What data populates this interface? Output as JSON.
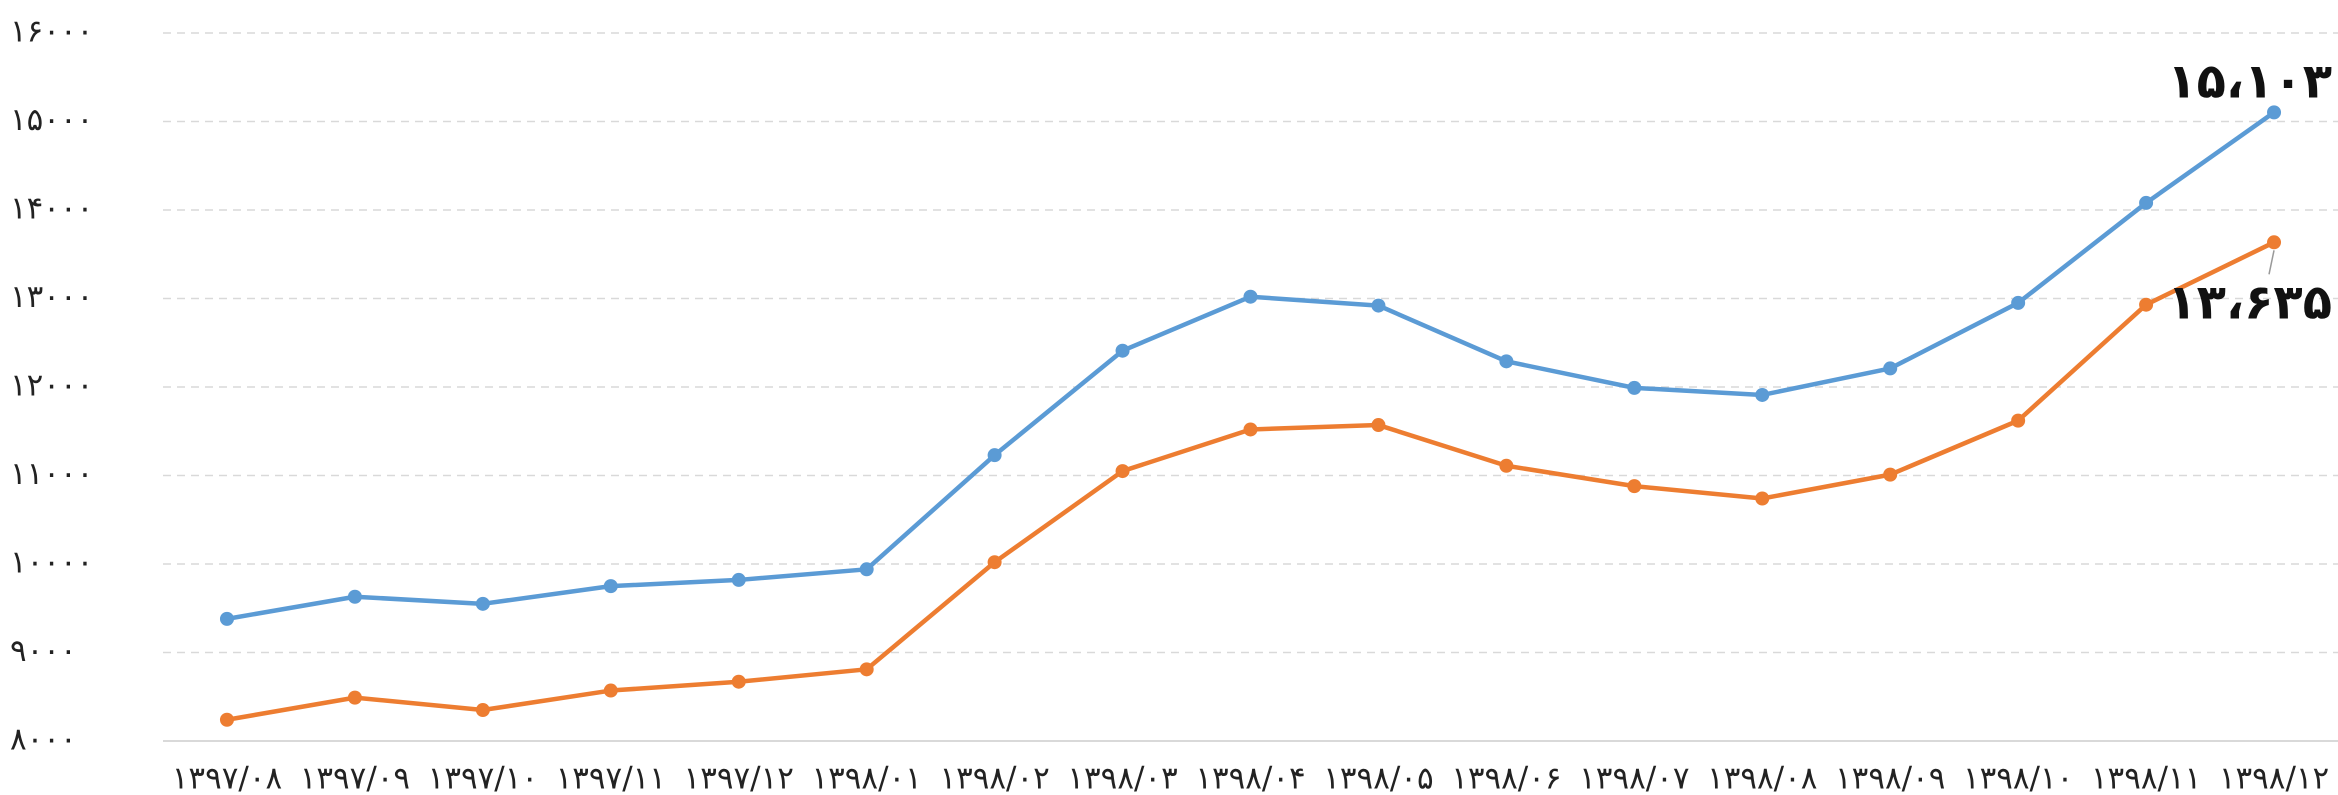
{
  "chart_data": {
    "type": "line",
    "categories": [
      "۱۳۹۷/۰۸",
      "۱۳۹۷/۰۹",
      "۱۳۹۷/۱۰",
      "۱۳۹۷/۱۱",
      "۱۳۹۷/۱۲",
      "۱۳۹۸/۰۱",
      "۱۳۹۸/۰۲",
      "۱۳۹۸/۰۳",
      "۱۳۹۸/۰۴",
      "۱۳۹۸/۰۵",
      "۱۳۹۸/۰۶",
      "۱۳۹۸/۰۷",
      "۱۳۹۸/۰۸",
      "۱۳۹۸/۰۹",
      "۱۳۹۸/۱۰",
      "۱۳۹۸/۱۱",
      "۱۳۹۸/۱۲"
    ],
    "series": [
      {
        "color": "#5b9bd5",
        "values": [
          9380,
          9630,
          9550,
          9750,
          9820,
          9940,
          11230,
          12410,
          13020,
          12920,
          12290,
          11990,
          11910,
          12210,
          12950,
          14080,
          15103
        ],
        "value_labels": [
          null,
          null,
          null,
          null,
          null,
          null,
          null,
          null,
          null,
          null,
          null,
          null,
          null,
          null,
          null,
          null,
          "۱۵،۱۰۳"
        ]
      },
      {
        "color": "#ed7d31",
        "values": [
          8240,
          8490,
          8350,
          8570,
          8670,
          8810,
          10020,
          11050,
          11520,
          11570,
          11110,
          10880,
          10740,
          11010,
          11620,
          12930,
          13635
        ],
        "value_labels": [
          null,
          null,
          null,
          null,
          null,
          null,
          null,
          null,
          null,
          null,
          null,
          null,
          null,
          null,
          null,
          null,
          "۱۳،۶۳۵"
        ]
      }
    ],
    "ylim": [
      8000,
      16000
    ],
    "yticks": [
      {
        "value": 8000,
        "label": "۸۰۰۰"
      },
      {
        "value": 9000,
        "label": "۹۰۰۰"
      },
      {
        "value": 10000,
        "label": "۱۰۰۰۰"
      },
      {
        "value": 11000,
        "label": "۱۱۰۰۰"
      },
      {
        "value": 12000,
        "label": "۱۲۰۰۰"
      },
      {
        "value": 13000,
        "label": "۱۳۰۰۰"
      },
      {
        "value": 14000,
        "label": "۱۴۰۰۰"
      },
      {
        "value": 15000,
        "label": "۱۵۰۰۰"
      },
      {
        "value": 16000,
        "label": "۱۶۰۰۰"
      }
    ],
    "grid": true
  }
}
